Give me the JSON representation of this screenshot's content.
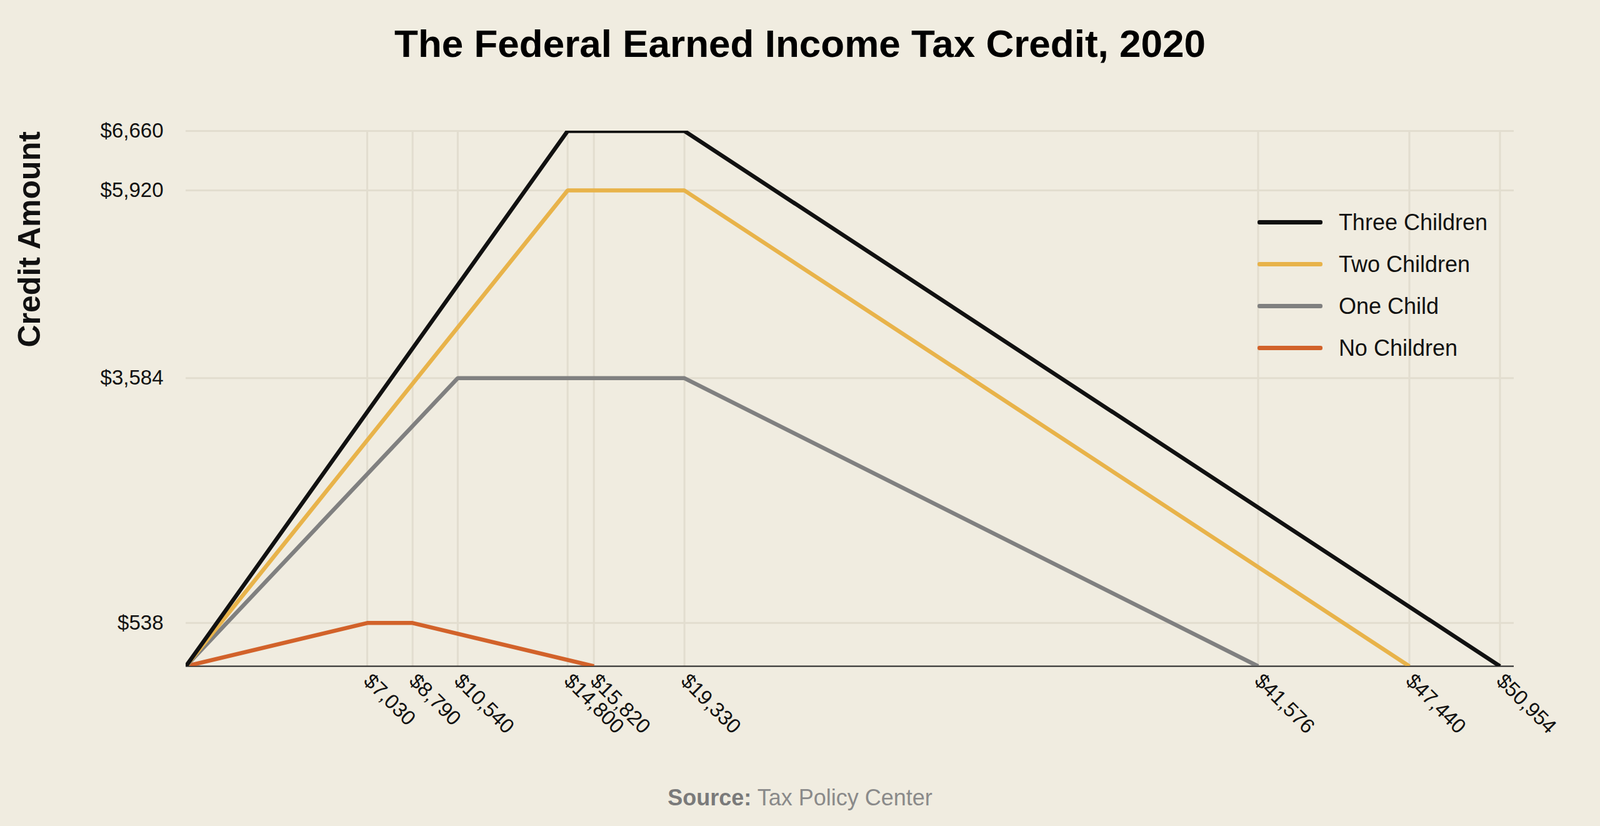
{
  "chart_data": {
    "type": "line",
    "title": "The Federal Earned Income Tax Credit, 2020",
    "ylabel": "Credit Amount",
    "caption": "Source: Tax Policy Center",
    "series": [
      {
        "name": "Three Children",
        "color": "#111111",
        "x": [
          0,
          14800,
          19330,
          50954
        ],
        "values": [
          0,
          6660,
          6660,
          0
        ]
      },
      {
        "name": "Two Children",
        "color": "#e8b34a",
        "x": [
          0,
          14800,
          19330,
          47440
        ],
        "values": [
          0,
          5920,
          5920,
          0
        ]
      },
      {
        "name": "One Child",
        "color": "#808080",
        "x": [
          0,
          10540,
          19330,
          41576
        ],
        "values": [
          0,
          3584,
          3584,
          0
        ]
      },
      {
        "name": "No Children",
        "color": "#d2622a",
        "x": [
          0,
          7030,
          8790,
          15820
        ],
        "values": [
          0,
          538,
          538,
          0
        ]
      }
    ],
    "xlim": [
      0,
      51500
    ],
    "ylim": [
      0,
      6660
    ],
    "xticks": [
      {
        "value": 7030,
        "label": "$7,030"
      },
      {
        "value": 8790,
        "label": "$8,790"
      },
      {
        "value": 10540,
        "label": "$10,540"
      },
      {
        "value": 14800,
        "label": "$14,800"
      },
      {
        "value": 15820,
        "label": "$15,820"
      },
      {
        "value": 19330,
        "label": "$19,330"
      },
      {
        "value": 41576,
        "label": "$41,576"
      },
      {
        "value": 47440,
        "label": "$47,440"
      },
      {
        "value": 50954,
        "label": "$50,954"
      }
    ],
    "yticks": [
      {
        "value": 538,
        "label": "$538"
      },
      {
        "value": 3584,
        "label": "$3,584"
      },
      {
        "value": 5920,
        "label": "$5,920"
      },
      {
        "value": 6660,
        "label": "$6,660"
      }
    ],
    "grid": true,
    "legend": "upper right"
  }
}
